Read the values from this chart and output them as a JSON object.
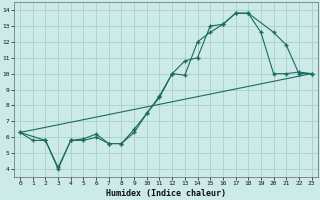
{
  "xlabel": "Humidex (Indice chaleur)",
  "bg_color": "#cceae7",
  "grid_color": "#aacfcc",
  "line_color": "#1a6b60",
  "xlim": [
    -0.5,
    23.5
  ],
  "ylim": [
    3.5,
    14.5
  ],
  "xticks": [
    0,
    1,
    2,
    3,
    4,
    5,
    6,
    7,
    8,
    9,
    10,
    11,
    12,
    13,
    14,
    15,
    16,
    17,
    18,
    19,
    20,
    21,
    22,
    23
  ],
  "yticks": [
    4,
    5,
    6,
    7,
    8,
    9,
    10,
    11,
    12,
    13,
    14
  ],
  "line1_x": [
    0,
    1,
    2,
    3,
    4,
    5,
    6,
    7,
    8,
    9,
    10,
    11,
    12,
    13,
    14,
    15,
    16,
    17,
    18,
    19,
    20,
    21,
    22,
    23
  ],
  "line1_y": [
    6.3,
    5.8,
    5.8,
    4.0,
    5.8,
    5.8,
    6.0,
    5.6,
    5.6,
    6.3,
    7.5,
    8.5,
    10.0,
    9.9,
    12.0,
    12.6,
    13.1,
    13.8,
    13.8,
    12.6,
    10.0,
    10.0,
    10.1,
    10.0
  ],
  "line2_x": [
    0,
    2,
    3,
    4,
    5,
    6,
    7,
    8,
    9,
    10,
    11,
    12,
    13,
    14,
    15,
    16,
    17,
    18,
    20,
    21,
    22,
    23
  ],
  "line2_y": [
    6.3,
    5.8,
    4.1,
    5.8,
    5.9,
    6.2,
    5.6,
    5.6,
    6.5,
    7.5,
    8.6,
    10.0,
    10.8,
    11.0,
    13.0,
    13.1,
    13.8,
    13.8,
    12.6,
    11.8,
    10.0,
    10.0
  ],
  "line3_x": [
    0,
    23
  ],
  "line3_y": [
    6.3,
    10.0
  ]
}
